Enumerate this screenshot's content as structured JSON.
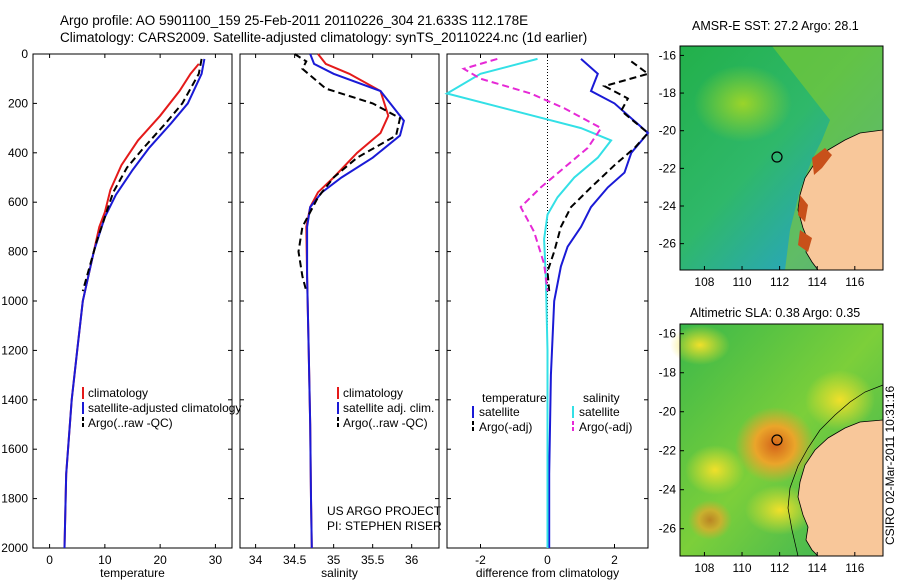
{
  "header": {
    "line1": "Argo profile: AO 5901100_159 25-Feb-2011 20110226_304 21.633S 112.178E",
    "line2": "Climatology: CARS2009. Satellite-adjusted climatology: synTS_20110224.nc (1d earlier)"
  },
  "colors": {
    "climatology": "#e41a1a",
    "satellite": "#1a1ad6",
    "argo": "#000000",
    "cyan": "#33e0e6",
    "magenta": "#e629d6",
    "land": "#f8c79a"
  },
  "chart_data": [
    {
      "type": "line",
      "xlabel": "temperature",
      "ylim": [
        2000,
        0
      ],
      "xlim": [
        -3,
        33
      ],
      "xticks": [
        0,
        10,
        20,
        30
      ],
      "yticks": [
        0,
        200,
        400,
        600,
        800,
        1000,
        1200,
        1400,
        1600,
        1800,
        2000
      ],
      "legend": [
        "climatology",
        "satellite-adjusted climatology",
        "Argo(..raw -QC)"
      ],
      "series": [
        {
          "name": "climatology",
          "style": "solid",
          "color": "#e41a1a",
          "x": [
            27.0,
            25.5,
            23.5,
            20,
            16,
            13,
            11,
            10,
            9,
            8,
            7,
            6,
            5,
            4,
            3,
            2.7
          ],
          "y": [
            40,
            80,
            150,
            250,
            350,
            450,
            550,
            640,
            700,
            800,
            900,
            1000,
            1200,
            1400,
            1700,
            2000
          ]
        },
        {
          "name": "satellite-adjusted climatology",
          "style": "solid",
          "color": "#1a1ad6",
          "x": [
            28.0,
            27.5,
            25,
            22,
            18,
            15,
            12,
            10,
            9,
            8,
            7,
            6,
            5,
            4,
            3,
            2.7
          ],
          "y": [
            20,
            80,
            200,
            280,
            380,
            470,
            570,
            660,
            730,
            800,
            900,
            1000,
            1200,
            1400,
            1700,
            2000
          ]
        },
        {
          "name": "Argo(..raw -QC)",
          "style": "dashed",
          "color": "#000000",
          "x": [
            27.5,
            27.0,
            24,
            21,
            17,
            14,
            11.5,
            10,
            8.5,
            7,
            6
          ],
          "y": [
            20,
            80,
            200,
            280,
            380,
            460,
            560,
            660,
            760,
            880,
            960
          ]
        }
      ]
    },
    {
      "type": "line",
      "xlabel": "salinity",
      "ylim": [
        2000,
        0
      ],
      "xlim": [
        33.8,
        36.35
      ],
      "xticks": [
        34,
        34.5,
        35,
        35.5,
        36
      ],
      "yticks": [
        0,
        200,
        400,
        600,
        800,
        1000,
        1200,
        1400,
        1600,
        1800,
        2000
      ],
      "legend": [
        "climatology",
        "satellite adj. clim.",
        "Argo(..raw -QC)"
      ],
      "annotations": [
        "US ARGO PROJECT",
        "PI: STEPHEN RISER"
      ],
      "series": [
        {
          "name": "climatology",
          "style": "solid",
          "color": "#e41a1a",
          "x": [
            34.8,
            34.9,
            35.2,
            35.6,
            35.7,
            35.6,
            35.3,
            35.0,
            34.8,
            34.7,
            34.65,
            34.66,
            34.68,
            34.7,
            34.71,
            34.72
          ],
          "y": [
            0,
            40,
            80,
            150,
            250,
            320,
            400,
            500,
            560,
            620,
            700,
            900,
            1200,
            1500,
            1800,
            2000
          ]
        },
        {
          "name": "satellite adj. clim.",
          "style": "solid",
          "color": "#1a1ad6",
          "x": [
            34.7,
            34.75,
            35.0,
            35.6,
            35.9,
            35.85,
            35.5,
            35.1,
            34.85,
            34.7,
            34.66,
            34.66,
            34.68,
            34.7,
            34.71,
            34.72
          ],
          "y": [
            0,
            40,
            80,
            150,
            270,
            330,
            420,
            500,
            560,
            620,
            700,
            900,
            1200,
            1500,
            1800,
            2000
          ]
        },
        {
          "name": "Argo(..raw -QC)",
          "style": "dashed",
          "color": "#000000",
          "x": [
            34.5,
            34.65,
            34.6,
            34.9,
            35.5,
            35.85,
            35.8,
            35.3,
            35.0,
            34.8,
            34.6,
            34.55,
            34.6,
            34.65
          ],
          "y": [
            0,
            30,
            60,
            140,
            200,
            260,
            330,
            420,
            500,
            580,
            700,
            800,
            900,
            960
          ]
        }
      ]
    },
    {
      "type": "line",
      "xlabel": "difference from climatology",
      "ylim": [
        2000,
        0
      ],
      "xlim": [
        -3,
        3
      ],
      "xticks": [
        -2,
        0,
        2
      ],
      "yticks": [
        0,
        200,
        400,
        600,
        800,
        1000,
        1200,
        1400,
        1600,
        1800,
        2000
      ],
      "legend_headers": [
        "temperature",
        "salinity"
      ],
      "legend": [
        "satellite",
        "Argo(-adj)",
        "satellite",
        "Argo(-adj)"
      ],
      "zero_line": 0,
      "series": [
        {
          "name": "satellite",
          "group": "temperature",
          "style": "solid",
          "color": "#1a1ad6",
          "x": [
            1.0,
            1.5,
            1.3,
            2.0,
            3.0,
            2.5,
            2.3,
            1.8,
            1.3,
            1.0,
            0.6,
            0.4,
            0.2,
            0.1,
            0.05,
            0.05
          ],
          "y": [
            20,
            80,
            150,
            200,
            320,
            400,
            480,
            540,
            620,
            700,
            780,
            860,
            1000,
            1300,
            1700,
            2000
          ]
        },
        {
          "name": "Argo(-adj)",
          "group": "temperature",
          "style": "dashed",
          "color": "#000000",
          "x": [
            2.5,
            3.0,
            1.7,
            2.4,
            2.2,
            3.0,
            2.6,
            2.0,
            1.3,
            0.7,
            0.4,
            0.2,
            0.0,
            0.05
          ],
          "y": [
            30,
            80,
            130,
            180,
            230,
            320,
            380,
            450,
            540,
            620,
            700,
            800,
            880,
            960
          ]
        },
        {
          "name": "satellite",
          "group": "salinity",
          "style": "solid",
          "color": "#33e0e6",
          "x": [
            -0.3,
            -2.0,
            -3.0,
            -1.0,
            1.0,
            1.9,
            1.5,
            0.8,
            0.3,
            0.0,
            -0.1,
            -0.05,
            0.0,
            0.0,
            0.0
          ],
          "y": [
            20,
            80,
            160,
            230,
            300,
            350,
            420,
            500,
            580,
            650,
            750,
            900,
            1200,
            1600,
            2000
          ]
        },
        {
          "name": "Argo(-adj)",
          "group": "salinity",
          "style": "dashed",
          "color": "#e629d6",
          "x": [
            -1.5,
            -2.5,
            -2.0,
            -0.5,
            0.5,
            1.6,
            1.2,
            0.5,
            -0.2,
            -0.8,
            -0.4,
            -0.1,
            0.0
          ],
          "y": [
            20,
            60,
            100,
            160,
            220,
            300,
            380,
            460,
            540,
            620,
            720,
            850,
            960
          ]
        }
      ]
    },
    {
      "type": "heatmap",
      "title": "AMSR-E SST: 27.2 Argo: 28.1",
      "xlim": [
        106.7,
        117.5
      ],
      "ylim": [
        -27.4,
        -15.5
      ],
      "xticks": [
        108,
        110,
        112,
        114,
        116
      ],
      "yticks": [
        -16,
        -18,
        -20,
        -22,
        -24,
        -26
      ],
      "marker": {
        "lon": 112.18,
        "lat": -21.63
      }
    },
    {
      "type": "heatmap",
      "title": "Altimetric SLA: 0.38 Argo: 0.35",
      "xlim": [
        106.7,
        117.5
      ],
      "ylim": [
        -27.4,
        -15.5
      ],
      "xticks": [
        108,
        110,
        112,
        114,
        116
      ],
      "yticks": [
        -16,
        -18,
        -20,
        -22,
        -24,
        -26
      ],
      "marker": {
        "lon": 112.18,
        "lat": -21.63
      }
    }
  ],
  "stamp": "CSIRO 02-Mar-2011 10:31:16"
}
